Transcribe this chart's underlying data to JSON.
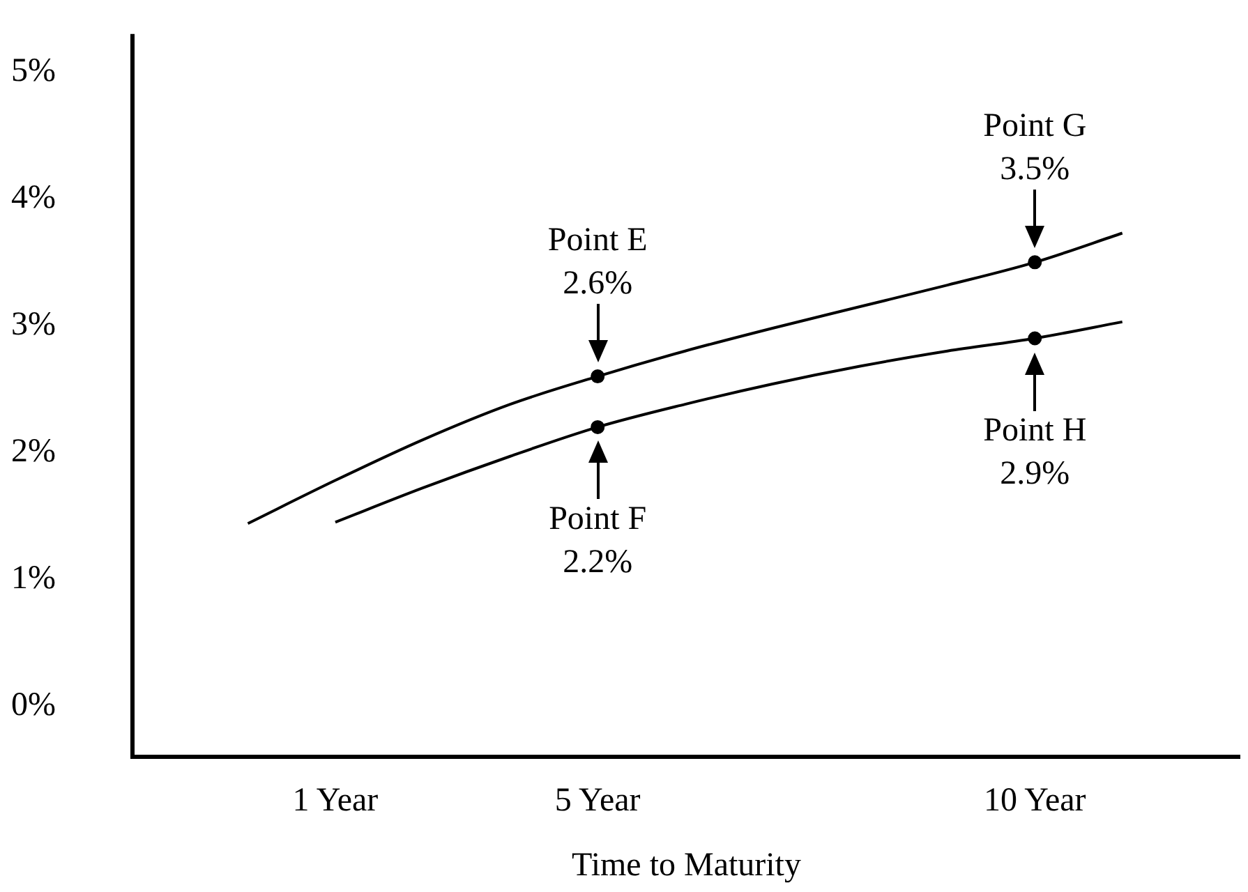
{
  "chart_data": {
    "type": "line",
    "xlabel": "Time to Maturity",
    "categories": [
      null,
      "1 Year",
      null,
      null,
      "5 Year",
      null,
      null,
      null,
      null,
      "10 Year",
      null
    ],
    "ylim": [
      -0.4,
      5.3
    ],
    "yticks": [
      {
        "value": 0,
        "label": "0%"
      },
      {
        "value": 1,
        "label": "1%"
      },
      {
        "value": 2,
        "label": "2%"
      },
      {
        "value": 3,
        "label": "3%"
      },
      {
        "value": 4,
        "label": "4%"
      },
      {
        "value": 5,
        "label": "5%"
      }
    ],
    "series": [
      {
        "color": "#000000",
        "values": [
          1.44,
          1.78,
          2.1,
          2.38,
          2.6,
          2.8,
          2.98,
          3.15,
          3.32,
          3.5,
          3.73
        ]
      },
      {
        "color": "#000000",
        "values": [
          null,
          1.45,
          1.72,
          1.97,
          2.2,
          2.38,
          2.54,
          2.68,
          2.8,
          2.9,
          3.03
        ]
      },
      {
        "type": "scatter",
        "color": "#000000",
        "marker": "circle",
        "x": [
          "5 Year",
          "5 Year",
          "10 Year",
          "10 Year"
        ],
        "values": [
          2.6,
          2.2,
          3.5,
          2.9
        ]
      }
    ],
    "annotations": [
      {
        "text": "Point E\n2.6%",
        "x": "5 Year",
        "y": 2.6
      },
      {
        "text": "Point F\n2.2%",
        "x": "5 Year",
        "y": 2.2
      },
      {
        "text": "Point G\n3.5%",
        "x": "10 Year",
        "y": 3.5
      },
      {
        "text": "Point H\n2.9%",
        "x": "10 Year",
        "y": 2.9
      }
    ],
    "grid": false,
    "legend": false
  }
}
